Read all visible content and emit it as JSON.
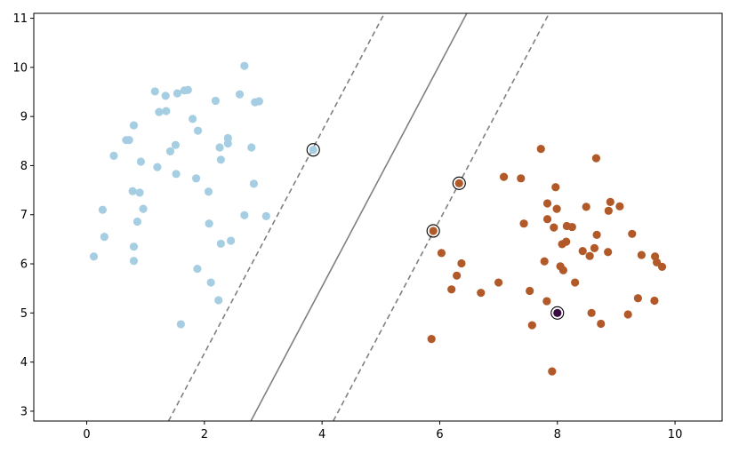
{
  "chart_data": {
    "type": "scatter",
    "title": "",
    "xlabel": "",
    "ylabel": "",
    "xlim": [
      -0.9,
      10.8
    ],
    "ylim": [
      2.8,
      11.1
    ],
    "xticks": [
      0,
      2,
      4,
      6,
      8,
      10
    ],
    "yticks": [
      3,
      4,
      5,
      6,
      7,
      8,
      9,
      10,
      11
    ],
    "grid": false,
    "legend": "none",
    "colors": {
      "class_a": "#a6cee3",
      "class_b": "#b15928",
      "decision_boundary": "#808080",
      "support_vector_ring": "#000000",
      "highlight_point": "#3b0a45"
    },
    "series": [
      {
        "values": [
          [
            0.12,
            6.15
          ],
          [
            0.27,
            7.1
          ],
          [
            0.3,
            6.55
          ],
          [
            0.46,
            8.2
          ],
          [
            0.67,
            8.52
          ],
          [
            0.72,
            8.52
          ],
          [
            0.78,
            7.48
          ],
          [
            0.8,
            8.82
          ],
          [
            0.8,
            6.35
          ],
          [
            0.8,
            6.06
          ],
          [
            0.86,
            6.86
          ],
          [
            0.9,
            7.45
          ],
          [
            0.92,
            8.08
          ],
          [
            0.96,
            7.12
          ],
          [
            1.16,
            9.51
          ],
          [
            1.2,
            7.97
          ],
          [
            1.23,
            9.09
          ],
          [
            1.34,
            9.42
          ],
          [
            1.35,
            9.11
          ],
          [
            1.42,
            8.29
          ],
          [
            1.51,
            8.42
          ],
          [
            1.52,
            7.83
          ],
          [
            1.54,
            9.47
          ],
          [
            1.6,
            4.77
          ],
          [
            1.66,
            9.53
          ],
          [
            1.72,
            9.54
          ],
          [
            1.8,
            8.95
          ],
          [
            1.86,
            7.74
          ],
          [
            1.88,
            5.9
          ],
          [
            1.89,
            8.71
          ],
          [
            2.07,
            7.47
          ],
          [
            2.08,
            6.82
          ],
          [
            2.11,
            5.62
          ],
          [
            2.19,
            9.32
          ],
          [
            2.24,
            5.26
          ],
          [
            2.26,
            8.37
          ],
          [
            2.28,
            6.41
          ],
          [
            2.28,
            8.12
          ],
          [
            2.4,
            8.45
          ],
          [
            2.4,
            8.56
          ],
          [
            2.45,
            6.47
          ],
          [
            2.6,
            9.45
          ],
          [
            2.68,
            10.03
          ],
          [
            2.68,
            6.99
          ],
          [
            2.8,
            8.37
          ],
          [
            2.84,
            7.63
          ],
          [
            2.86,
            9.29
          ],
          [
            2.93,
            9.31
          ],
          [
            3.05,
            6.97
          ],
          [
            3.85,
            8.32
          ]
        ]
      },
      {
        "values": [
          [
            5.86,
            4.47
          ],
          [
            5.89,
            6.67
          ],
          [
            6.03,
            6.22
          ],
          [
            6.2,
            5.48
          ],
          [
            6.29,
            5.76
          ],
          [
            6.33,
            7.64
          ],
          [
            6.37,
            6.01
          ],
          [
            6.7,
            5.41
          ],
          [
            7.0,
            5.62
          ],
          [
            7.09,
            7.77
          ],
          [
            7.38,
            7.74
          ],
          [
            7.43,
            6.82
          ],
          [
            7.53,
            5.45
          ],
          [
            7.57,
            4.75
          ],
          [
            7.72,
            8.34
          ],
          [
            7.78,
            6.05
          ],
          [
            7.82,
            5.24
          ],
          [
            7.83,
            7.23
          ],
          [
            7.83,
            6.91
          ],
          [
            7.91,
            3.81
          ],
          [
            7.94,
            6.74
          ],
          [
            7.97,
            7.56
          ],
          [
            7.99,
            7.12
          ],
          [
            8.0,
            5.0
          ],
          [
            8.05,
            5.95
          ],
          [
            8.08,
            6.4
          ],
          [
            8.1,
            5.87
          ],
          [
            8.15,
            6.45
          ],
          [
            8.16,
            6.77
          ],
          [
            8.25,
            6.75
          ],
          [
            8.3,
            5.62
          ],
          [
            8.43,
            6.26
          ],
          [
            8.49,
            7.16
          ],
          [
            8.55,
            6.16
          ],
          [
            8.58,
            5.0
          ],
          [
            8.63,
            6.32
          ],
          [
            8.66,
            8.15
          ],
          [
            8.67,
            6.59
          ],
          [
            8.74,
            4.78
          ],
          [
            8.86,
            6.24
          ],
          [
            8.87,
            7.08
          ],
          [
            8.9,
            7.26
          ],
          [
            9.06,
            7.17
          ],
          [
            9.2,
            4.97
          ],
          [
            9.27,
            6.61
          ],
          [
            9.37,
            5.3
          ],
          [
            9.43,
            6.18
          ],
          [
            9.65,
            5.25
          ],
          [
            9.66,
            6.15
          ],
          [
            9.69,
            6.03
          ],
          [
            9.78,
            5.94
          ]
        ]
      }
    ],
    "highlighted_point": [
      8.0,
      5.0
    ],
    "decision_boundary": {
      "decision": [
        [
          2.79,
          2.8
        ],
        [
          6.46,
          11.1
        ]
      ],
      "margin_lower": [
        [
          4.19,
          2.8
        ],
        [
          7.86,
          11.1
        ]
      ],
      "margin_upper": [
        [
          1.39,
          2.8
        ],
        [
          5.06,
          11.1
        ]
      ]
    },
    "support_vectors": [
      [
        3.85,
        8.32
      ],
      [
        6.33,
        7.64
      ],
      [
        5.89,
        6.67
      ],
      [
        8.0,
        5.0
      ]
    ]
  }
}
